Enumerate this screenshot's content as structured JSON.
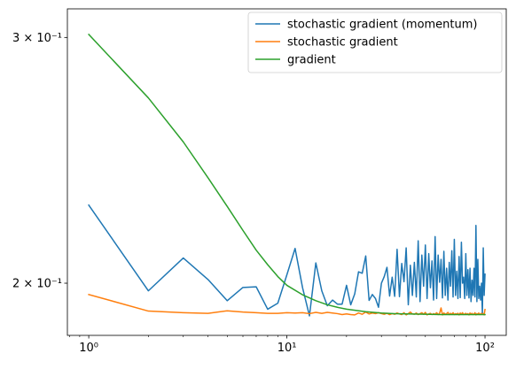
{
  "chart_data": {
    "type": "line",
    "title": "",
    "xlabel": "",
    "ylabel": "",
    "xscale": "log",
    "yscale": "log",
    "xlim": [
      0.78,
      128
    ],
    "ylim": [
      0.1835,
      0.3145
    ],
    "grid": false,
    "legend_position": "top-right",
    "x_ticks": [
      {
        "value": 1,
        "label": "10⁰"
      },
      {
        "value": 10,
        "label": "10¹"
      },
      {
        "value": 100,
        "label": "10²"
      }
    ],
    "y_ticks": [
      {
        "value": 0.2,
        "label": "2 × 10⁻¹"
      },
      {
        "value": 0.3,
        "label": "3 × 10⁻¹"
      }
    ],
    "series": [
      {
        "name": "stochastic gradient (momentum)",
        "color": "#1f77b4",
        "x": [
          1,
          2,
          3,
          4,
          5,
          6,
          7,
          8,
          9,
          10,
          11,
          12,
          13,
          14,
          15,
          16,
          17,
          18,
          19,
          20,
          21,
          22,
          23,
          24,
          25,
          26,
          27,
          28,
          29,
          30,
          31,
          32,
          33,
          34,
          35,
          36,
          37,
          38,
          39,
          40,
          41,
          42,
          43,
          44,
          45,
          46,
          47,
          48,
          49,
          50,
          51,
          52,
          53,
          54,
          55,
          56,
          57,
          58,
          59,
          60,
          61,
          62,
          63,
          64,
          65,
          66,
          67,
          68,
          69,
          70,
          71,
          72,
          73,
          74,
          75,
          76,
          77,
          78,
          79,
          80,
          81,
          82,
          83,
          84,
          85,
          86,
          87,
          88,
          89,
          90,
          91,
          92,
          93,
          94,
          95,
          96,
          97,
          98,
          99,
          100
        ],
        "y": [
          0.2275,
          0.1975,
          0.2085,
          0.2012,
          0.1943,
          0.1986,
          0.1988,
          0.1916,
          0.1935,
          0.2028,
          0.2118,
          0.1985,
          0.1895,
          0.2068,
          0.1975,
          0.1927,
          0.1945,
          0.1932,
          0.1932,
          0.1993,
          0.193,
          0.1965,
          0.2038,
          0.2033,
          0.2092,
          0.1944,
          0.1963,
          0.195,
          0.1922,
          0.2,
          0.2022,
          0.2053,
          0.1958,
          0.202,
          0.1957,
          0.2115,
          0.1956,
          0.2066,
          0.2005,
          0.212,
          0.193,
          0.206,
          0.196,
          0.207,
          0.1955,
          0.2145,
          0.194,
          0.2095,
          0.199,
          0.213,
          0.195,
          0.21,
          0.1985,
          0.2075,
          0.1945,
          0.216,
          0.195,
          0.2095,
          0.2003,
          0.208,
          0.1952,
          0.2108,
          0.196,
          0.205,
          0.1945,
          0.207,
          0.199,
          0.211,
          0.1955,
          0.215,
          0.196,
          0.204,
          0.195,
          0.209,
          0.1953,
          0.214,
          0.2,
          0.202,
          0.195,
          0.21,
          0.196,
          0.2045,
          0.1952,
          0.205,
          0.194,
          0.201,
          0.196,
          0.205,
          0.1955,
          0.22,
          0.194,
          0.208,
          0.195,
          0.199,
          0.1945,
          0.2,
          0.19,
          0.212,
          0.196,
          0.203
        ]
      },
      {
        "name": "stochastic gradient",
        "color": "#ff7f0e",
        "x": [
          1,
          2,
          3,
          4,
          5,
          6,
          7,
          8,
          9,
          10,
          11,
          12,
          13,
          14,
          15,
          16,
          17,
          18,
          19,
          20,
          21,
          22,
          23,
          24,
          25,
          26,
          27,
          28,
          29,
          30,
          31,
          32,
          33,
          34,
          35,
          36,
          37,
          38,
          39,
          40,
          41,
          42,
          43,
          44,
          45,
          46,
          47,
          48,
          49,
          50,
          51,
          52,
          53,
          54,
          55,
          56,
          57,
          58,
          59,
          60,
          61,
          62,
          63,
          64,
          65,
          66,
          67,
          68,
          69,
          70,
          71,
          72,
          73,
          74,
          75,
          76,
          77,
          78,
          79,
          80,
          81,
          82,
          83,
          84,
          85,
          86,
          87,
          88,
          89,
          90,
          91,
          92,
          93,
          94,
          95,
          96,
          97,
          98,
          99,
          100
        ],
        "y": [
          0.1963,
          0.191,
          0.1905,
          0.1903,
          0.1911,
          0.1907,
          0.1905,
          0.1903,
          0.1903,
          0.1905,
          0.1904,
          0.1905,
          0.1902,
          0.1906,
          0.1903,
          0.1906,
          0.1904,
          0.1902,
          0.1899,
          0.1901,
          0.1899,
          0.1898,
          0.1904,
          0.19,
          0.1907,
          0.1901,
          0.1904,
          0.1902,
          0.1905,
          0.1902,
          0.19,
          0.1903,
          0.1899,
          0.1902,
          0.19,
          0.1904,
          0.1901,
          0.1899,
          0.1905,
          0.1898,
          0.1902,
          0.1907,
          0.1901,
          0.19,
          0.1904,
          0.1899,
          0.1902,
          0.1905,
          0.19,
          0.1906,
          0.1898,
          0.1901,
          0.1903,
          0.1899,
          0.1902,
          0.19,
          0.1905,
          0.1899,
          0.1903,
          0.192,
          0.1898,
          0.1904,
          0.19,
          0.1902,
          0.1906,
          0.1899,
          0.1903,
          0.19,
          0.1905,
          0.1899,
          0.1902,
          0.1901,
          0.1903,
          0.1898,
          0.1904,
          0.19,
          0.1905,
          0.1899,
          0.1901,
          0.1903,
          0.19,
          0.1902,
          0.1898,
          0.1904,
          0.19,
          0.1903,
          0.1899,
          0.1901,
          0.1905,
          0.1898,
          0.1902,
          0.19,
          0.1904,
          0.1899,
          0.1901,
          0.1903,
          0.19,
          0.1902,
          0.1898,
          0.1915
        ]
      },
      {
        "name": "gradient",
        "color": "#2ca02c",
        "x": [
          1,
          2,
          3,
          4,
          5,
          6,
          7,
          8,
          9,
          10,
          12,
          14,
          16,
          18,
          20,
          25,
          30,
          35,
          40,
          50,
          60,
          70,
          80,
          90,
          100
        ],
        "y": [
          0.3015,
          0.2715,
          0.2525,
          0.238,
          0.227,
          0.2182,
          0.2112,
          0.2062,
          0.2022,
          0.1993,
          0.1962,
          0.1943,
          0.193,
          0.1922,
          0.1916,
          0.1908,
          0.1904,
          0.1902,
          0.1901,
          0.19,
          0.1899,
          0.1899,
          0.1899,
          0.1899,
          0.1899
        ]
      }
    ]
  }
}
